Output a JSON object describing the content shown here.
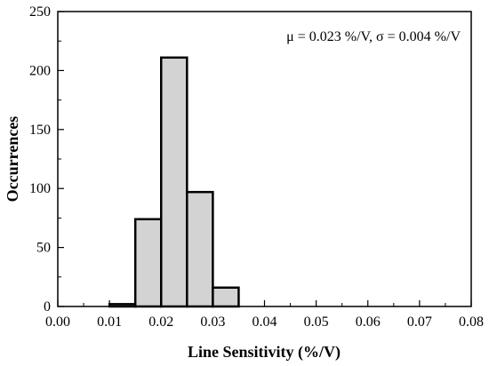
{
  "chart_data": {
    "type": "bar",
    "title": "",
    "xlabel": "Line Sensitivity (%/V)",
    "ylabel": "Occurrences",
    "xlim": [
      0.0,
      0.08
    ],
    "ylim": [
      0,
      250
    ],
    "x_ticks": [
      "0.00",
      "0.01",
      "0.02",
      "0.03",
      "0.04",
      "0.05",
      "0.06",
      "0.07",
      "0.08"
    ],
    "y_ticks": [
      "0",
      "50",
      "100",
      "150",
      "200",
      "250"
    ],
    "bins": [
      {
        "start": 0.01,
        "end": 0.015,
        "value": 2
      },
      {
        "start": 0.015,
        "end": 0.02,
        "value": 74
      },
      {
        "start": 0.02,
        "end": 0.025,
        "value": 211
      },
      {
        "start": 0.025,
        "end": 0.03,
        "value": 97
      },
      {
        "start": 0.03,
        "end": 0.035,
        "value": 16
      }
    ],
    "annotation": "μ = 0.023 %/V, σ = 0.004 %/V",
    "grid": false,
    "bar_color": "#d3d3d3",
    "edge_color": "#000000"
  }
}
